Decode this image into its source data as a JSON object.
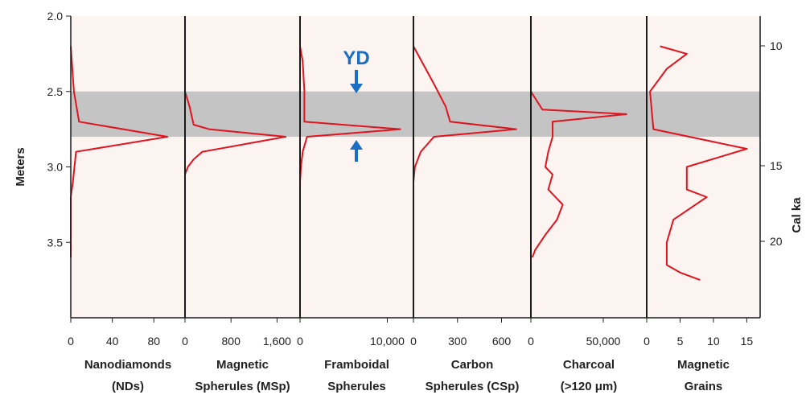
{
  "chart_data": {
    "type": "line",
    "orientation": "vertical-profiles",
    "y_axis_left": {
      "label": "Meters",
      "range": [
        2.0,
        4.0
      ],
      "reversed": true,
      "ticks": [
        2.0,
        2.5,
        3.0,
        3.5
      ],
      "tick_labels": [
        "2.0",
        "2.5",
        "3.0",
        "3.5"
      ]
    },
    "y_axis_right": {
      "label": "Cal ka",
      "ticks": [
        10,
        15,
        20
      ],
      "tick_labels": [
        "10",
        "15",
        "20"
      ]
    },
    "yd_layer": {
      "label": "YD",
      "depth_range": [
        2.5,
        2.8
      ],
      "color": "#c4c4c4",
      "arrow_color": "#1a6fc4"
    },
    "background_color": "#fbf4f1",
    "line_color": "#e0141e",
    "panels": [
      {
        "title_line1": "Nanodiamonds",
        "title_line2": "(NDs)",
        "xlim": [
          0,
          110
        ],
        "tick_values": [
          0,
          40,
          80
        ],
        "tick_labels": [
          "0",
          "40",
          "80"
        ],
        "points": [
          [
            0,
            2.2
          ],
          [
            3,
            2.5
          ],
          [
            8,
            2.7
          ],
          [
            93,
            2.8
          ],
          [
            5,
            2.9
          ],
          [
            2,
            3.1
          ],
          [
            0,
            3.2
          ],
          [
            0,
            3.6
          ]
        ]
      },
      {
        "title_line1": "Magnetic",
        "title_line2": "Spherules (MSp)",
        "xlim": [
          0,
          2000
        ],
        "tick_values": [
          0,
          800,
          1600
        ],
        "tick_labels": [
          "0",
          "800",
          "1,600"
        ],
        "points": [
          [
            0,
            2.2
          ],
          [
            0,
            2.5
          ],
          [
            80,
            2.6
          ],
          [
            150,
            2.72
          ],
          [
            420,
            2.75
          ],
          [
            1750,
            2.8
          ],
          [
            300,
            2.9
          ],
          [
            150,
            2.95
          ],
          [
            50,
            3.0
          ],
          [
            0,
            3.05
          ],
          [
            0,
            3.5
          ]
        ]
      },
      {
        "title_line1": "Framboidal",
        "title_line2": "Spherules",
        "xlim": [
          0,
          13000
        ],
        "tick_values": [
          0,
          10000
        ],
        "tick_labels": [
          "0",
          "10,000"
        ],
        "points": [
          [
            0,
            2.2
          ],
          [
            300,
            2.3
          ],
          [
            500,
            2.5
          ],
          [
            500,
            2.6
          ],
          [
            500,
            2.7
          ],
          [
            11500,
            2.75
          ],
          [
            800,
            2.8
          ],
          [
            300,
            2.9
          ],
          [
            100,
            3.0
          ],
          [
            0,
            3.1
          ],
          [
            0,
            3.6
          ]
        ]
      },
      {
        "title_line1": "Carbon",
        "title_line2": "Spherules (CSp)",
        "xlim": [
          0,
          800
        ],
        "tick_values": [
          0,
          300,
          600
        ],
        "tick_labels": [
          "0",
          "300",
          "600"
        ],
        "points": [
          [
            0,
            2.2
          ],
          [
            140,
            2.45
          ],
          [
            220,
            2.6
          ],
          [
            250,
            2.7
          ],
          [
            700,
            2.75
          ],
          [
            140,
            2.8
          ],
          [
            50,
            2.9
          ],
          [
            10,
            3.0
          ],
          [
            0,
            3.1
          ],
          [
            0,
            3.6
          ]
        ]
      },
      {
        "title_line1": "Charcoal",
        "title_line2": "(>120 μm)",
        "xlim": [
          0,
          80000
        ],
        "tick_values": [
          0,
          50000
        ],
        "tick_labels": [
          "0",
          "50,000"
        ],
        "points": [
          [
            0,
            2.5
          ],
          [
            8000,
            2.62
          ],
          [
            66000,
            2.65
          ],
          [
            15000,
            2.7
          ],
          [
            15000,
            2.8
          ],
          [
            12000,
            2.9
          ],
          [
            10000,
            3.0
          ],
          [
            15000,
            3.05
          ],
          [
            12000,
            3.15
          ],
          [
            22000,
            3.25
          ],
          [
            18000,
            3.35
          ],
          [
            10000,
            3.45
          ],
          [
            3000,
            3.55
          ],
          [
            1000,
            3.6
          ]
        ]
      },
      {
        "title_line1": "Magnetic",
        "title_line2": "Grains",
        "xlim": [
          0,
          17
        ],
        "tick_values": [
          0,
          5,
          10,
          15
        ],
        "tick_labels": [
          "0",
          "5",
          "10",
          "15"
        ],
        "points": [
          [
            2,
            2.2
          ],
          [
            6,
            2.25
          ],
          [
            3,
            2.35
          ],
          [
            0.5,
            2.5
          ],
          [
            1,
            2.75
          ],
          [
            15,
            2.88
          ],
          [
            6,
            3.0
          ],
          [
            6,
            3.15
          ],
          [
            9,
            3.2
          ],
          [
            4,
            3.35
          ],
          [
            3,
            3.5
          ],
          [
            3,
            3.65
          ],
          [
            5,
            3.7
          ],
          [
            8,
            3.75
          ]
        ]
      }
    ]
  }
}
